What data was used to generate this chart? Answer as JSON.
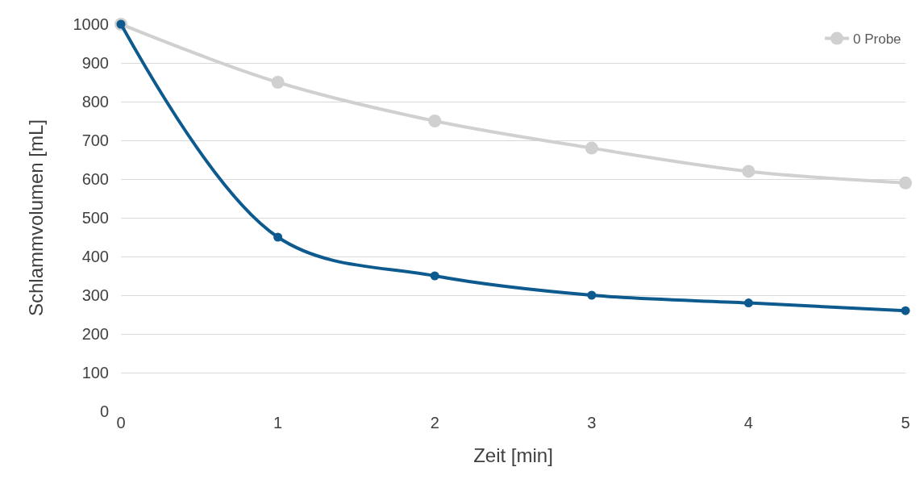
{
  "chart_data": {
    "type": "line",
    "xlabel": "Zeit [min]",
    "ylabel": "Schlammvolumen [mL]",
    "x": [
      0,
      1,
      2,
      3,
      4,
      5
    ],
    "series": [
      {
        "name": "0 Probe",
        "color": "#d0d0d0",
        "values": [
          1000,
          850,
          750,
          680,
          620,
          590
        ]
      },
      {
        "color": "#0d5a8f",
        "values": [
          1000,
          450,
          350,
          300,
          280,
          260
        ]
      }
    ],
    "xlim": [
      0,
      5
    ],
    "xticks": [
      0,
      1,
      2,
      3,
      4,
      5
    ],
    "ylim": [
      0,
      1000
    ],
    "yticks": [
      0,
      100,
      200,
      300,
      400,
      500,
      600,
      700,
      800,
      900,
      1000
    ],
    "grid": "y",
    "legend": "top right",
    "marker": "circle",
    "line_style": "solid"
  }
}
